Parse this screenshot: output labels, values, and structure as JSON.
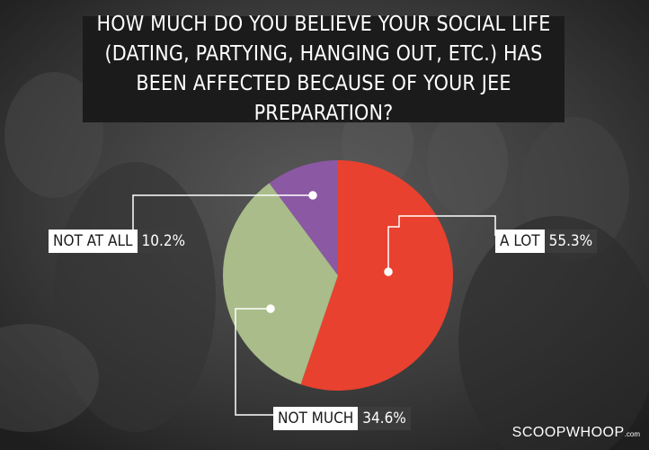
{
  "title": "HOW MUCH DO YOU BELIEVE YOUR SOCIAL LIFE (DATING, PARTYING, HANGING OUT, ETC.) HAS BEEN AFFECTED BECAUSE OF YOUR JEE PREPARATION?",
  "brand": {
    "name": "SCOOPWHOOP",
    "suffix": ".com"
  },
  "chart_data": {
    "type": "pie",
    "title": "HOW MUCH DO YOU BELIEVE YOUR SOCIAL LIFE (DATING, PARTYING, HANGING OUT, ETC.) HAS BEEN AFFECTED BECAUSE OF YOUR JEE PREPARATION?",
    "slices": [
      {
        "label": "A LOT",
        "value": 55.3,
        "display": "55.3%",
        "color": "#e8412f"
      },
      {
        "label": "NOT MUCH",
        "value": 34.6,
        "display": "34.6%",
        "color": "#a9bc8a"
      },
      {
        "label": "NOT AT ALL",
        "value": 10.2,
        "display": "10.2%",
        "color": "#8b58a3"
      }
    ],
    "labels_position": "outside with leader lines"
  }
}
